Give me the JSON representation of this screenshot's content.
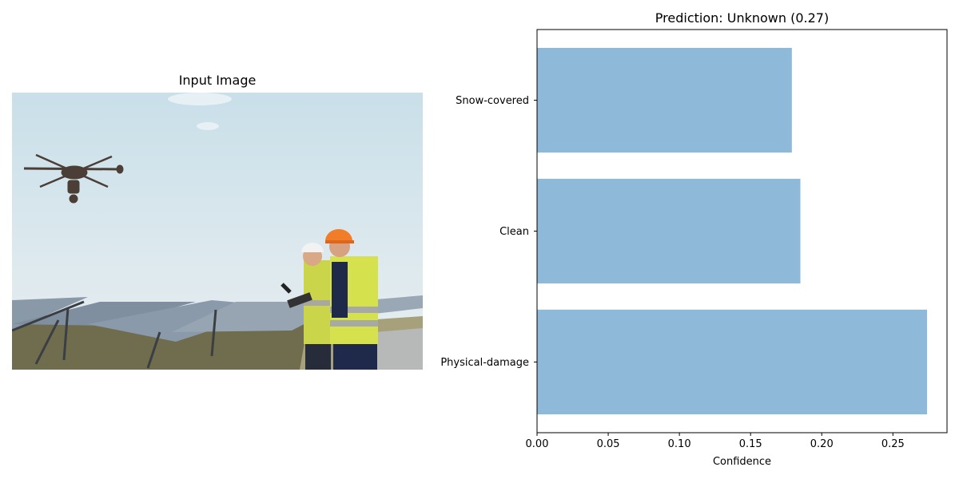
{
  "left_panel": {
    "title": "Input Image",
    "image_description_icon": "drone-over-solar-panels-photo"
  },
  "chart_data": {
    "type": "bar",
    "orientation": "horizontal",
    "title": "Prediction: Unknown (0.27)",
    "xlabel": "Confidence",
    "ylabel": "",
    "categories": [
      "Physical-damage",
      "Clean",
      "Snow-covered"
    ],
    "values": [
      0.274,
      0.185,
      0.179
    ],
    "xlim": [
      0,
      0.288
    ],
    "xticks": [
      "0.00",
      "0.05",
      "0.10",
      "0.15",
      "0.20",
      "0.25"
    ],
    "xtick_values": [
      0,
      0.05,
      0.1,
      0.15,
      0.2,
      0.25
    ],
    "bar_color": "#8fb9d8",
    "grid": false
  }
}
